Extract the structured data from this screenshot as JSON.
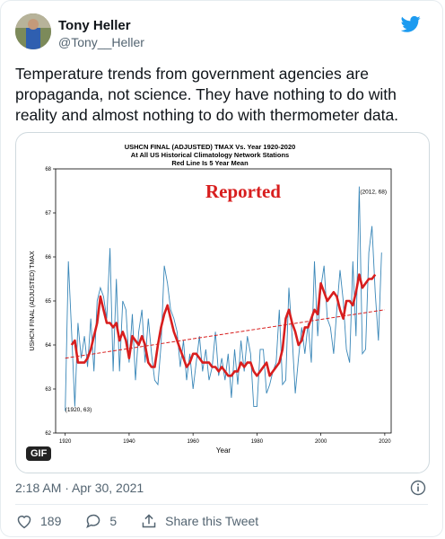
{
  "author": {
    "name": "Tony Heller",
    "handle": "@Tony__Heller"
  },
  "tweet_text": "Temperature trends from government agencies are propaganda, not science. They have nothing to do with reality and almost nothing to do with thermometer data.",
  "media": {
    "badge": "GIF"
  },
  "timestamp": "2:18 AM · Apr 30, 2021",
  "actions": {
    "likes": "189",
    "replies": "5",
    "share_label": "Share this Tweet"
  },
  "colors": {
    "brand": "#1d9bf0",
    "muted": "#536471",
    "series_line": "#3a87b8",
    "mean_line": "#d81e1e"
  },
  "icons": [
    "twitter-bird-icon",
    "info-icon",
    "heart-icon",
    "reply-icon",
    "share-icon"
  ],
  "chart_data": {
    "type": "line",
    "title_lines": [
      "USHCN FINAL (ADJUSTED) TMAX Vs. Year 1920-2020",
      "At All US Historical Climatology Network Stations",
      "Red Line Is 5 Year Mean"
    ],
    "overlay_text": "Reported",
    "xlabel": "Year",
    "ylabel": "USHCN FINAL (ADJUSTED) TMAX",
    "xlim": [
      1917,
      2022
    ],
    "ylim": [
      62,
      68
    ],
    "x_ticks": [
      "1920",
      "1940",
      "1960",
      "1980",
      "2000",
      "2020"
    ],
    "y_ticks": [
      "62",
      "63",
      "64",
      "65",
      "66",
      "67",
      "68"
    ],
    "annotations": [
      {
        "text": "(2012, 68)",
        "x": 2012,
        "y": 67.5
      },
      {
        "text": "(1920, 63)",
        "x": 1920,
        "y": 62.55
      }
    ],
    "series": [
      {
        "name": "Annual TMAX",
        "x": [
          1920,
          1921,
          1922,
          1923,
          1924,
          1925,
          1926,
          1927,
          1928,
          1929,
          1930,
          1931,
          1932,
          1933,
          1934,
          1935,
          1936,
          1937,
          1938,
          1939,
          1940,
          1941,
          1942,
          1943,
          1944,
          1945,
          1946,
          1947,
          1948,
          1949,
          1950,
          1951,
          1952,
          1953,
          1954,
          1955,
          1956,
          1957,
          1958,
          1959,
          1960,
          1961,
          1962,
          1963,
          1964,
          1965,
          1966,
          1967,
          1968,
          1969,
          1970,
          1971,
          1972,
          1973,
          1974,
          1975,
          1976,
          1977,
          1978,
          1979,
          1980,
          1981,
          1982,
          1983,
          1984,
          1985,
          1986,
          1987,
          1988,
          1989,
          1990,
          1991,
          1992,
          1993,
          1994,
          1995,
          1996,
          1997,
          1998,
          1999,
          2000,
          2001,
          2002,
          2003,
          2004,
          2005,
          2006,
          2007,
          2008,
          2009,
          2010,
          2011,
          2012,
          2013,
          2014,
          2015,
          2016,
          2017,
          2018,
          2019
        ],
        "y": [
          62.5,
          65.9,
          64.3,
          62.6,
          64.5,
          63.7,
          64.2,
          63.5,
          64.6,
          63.4,
          65.0,
          65.3,
          65.1,
          64.6,
          66.2,
          63.4,
          65.5,
          63.4,
          65.0,
          64.8,
          63.6,
          64.7,
          63.2,
          64.3,
          64.8,
          63.6,
          64.6,
          63.8,
          63.2,
          63.1,
          64.0,
          65.8,
          65.4,
          64.8,
          64.6,
          64.3,
          63.5,
          64.1,
          63.2,
          63.8,
          63.0,
          63.6,
          64.2,
          63.4,
          63.9,
          63.2,
          63.5,
          64.3,
          63.3,
          63.7,
          63.2,
          63.8,
          62.8,
          63.9,
          63.1,
          64.1,
          63.4,
          64.2,
          63.8,
          62.6,
          62.6,
          63.9,
          63.9,
          62.9,
          63.1,
          63.4,
          63.6,
          64.8,
          63.1,
          63.2,
          65.3,
          64.2,
          62.9,
          63.7,
          64.4,
          63.8,
          64.5,
          63.6,
          65.9,
          64.2,
          65.3,
          65.8,
          64.6,
          64.4,
          63.8,
          64.8,
          65.7,
          65.0,
          63.9,
          63.6,
          65.9,
          64.2,
          67.6,
          63.8,
          63.9,
          66.1,
          66.7,
          65.2,
          64.1,
          66.1
        ]
      },
      {
        "name": "5 Year Mean",
        "x": [
          1922,
          1923,
          1924,
          1925,
          1926,
          1927,
          1928,
          1929,
          1930,
          1931,
          1932,
          1933,
          1934,
          1935,
          1936,
          1937,
          1938,
          1939,
          1940,
          1941,
          1942,
          1943,
          1944,
          1945,
          1946,
          1947,
          1948,
          1949,
          1950,
          1951,
          1952,
          1953,
          1954,
          1955,
          1956,
          1957,
          1958,
          1959,
          1960,
          1961,
          1962,
          1963,
          1964,
          1965,
          1966,
          1967,
          1968,
          1969,
          1970,
          1971,
          1972,
          1973,
          1974,
          1975,
          1976,
          1977,
          1978,
          1979,
          1980,
          1981,
          1982,
          1983,
          1984,
          1985,
          1986,
          1987,
          1988,
          1989,
          1990,
          1991,
          1992,
          1993,
          1994,
          1995,
          1996,
          1997,
          1998,
          1999,
          2000,
          2001,
          2002,
          2003,
          2004,
          2005,
          2006,
          2007,
          2008,
          2009,
          2010,
          2011,
          2012,
          2013,
          2014,
          2015,
          2016,
          2017
        ],
        "y": [
          64.0,
          64.1,
          63.6,
          63.6,
          63.6,
          63.7,
          63.9,
          64.2,
          64.5,
          65.1,
          64.8,
          64.5,
          64.5,
          64.4,
          64.5,
          64.1,
          64.3,
          64.1,
          63.7,
          64.2,
          64.1,
          64.0,
          64.2,
          64.0,
          63.6,
          63.5,
          63.5,
          64.0,
          64.4,
          64.7,
          64.9,
          64.6,
          64.3,
          64.1,
          63.9,
          63.7,
          63.5,
          63.6,
          63.8,
          63.8,
          63.7,
          63.6,
          63.6,
          63.6,
          63.5,
          63.5,
          63.4,
          63.5,
          63.4,
          63.3,
          63.3,
          63.4,
          63.4,
          63.6,
          63.5,
          63.6,
          63.6,
          63.4,
          63.3,
          63.4,
          63.5,
          63.6,
          63.3,
          63.4,
          63.5,
          63.6,
          63.9,
          64.6,
          64.8,
          64.5,
          64.3,
          64.0,
          64.1,
          64.4,
          64.4,
          64.6,
          64.8,
          64.7,
          65.4,
          65.2,
          65.0,
          65.1,
          65.2,
          65.1,
          64.8,
          64.6,
          65.0,
          65.0,
          64.9,
          65.2,
          65.6,
          65.3,
          65.4,
          65.5,
          65.5,
          65.6
        ]
      },
      {
        "name": "Trend",
        "x": [
          1920,
          2020
        ],
        "y": [
          63.7,
          64.8
        ]
      }
    ]
  }
}
